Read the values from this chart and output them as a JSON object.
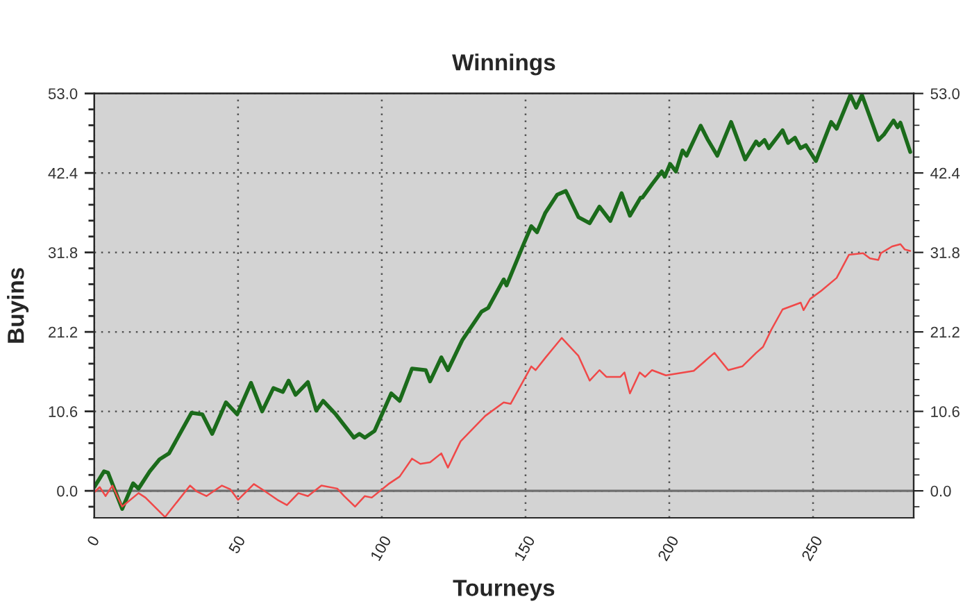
{
  "chart_data": {
    "type": "line",
    "title": "Winnings",
    "xlabel": "Tourneys",
    "ylabel": "Buyins",
    "xlim": [
      0,
      285
    ],
    "ylim": [
      -3.6,
      53.0
    ],
    "xticks": [
      0,
      50,
      100,
      150,
      200,
      250
    ],
    "yticks": [
      {
        "value": 0,
        "label": "0.0"
      },
      10.6,
      21.2,
      31.8,
      42.4,
      {
        "value": 53,
        "label": "53.0"
      }
    ],
    "y2lim": [
      -3.6,
      53.0
    ],
    "y2ticks": [
      {
        "value": 0,
        "label": "0.0"
      },
      10.6,
      21.2,
      31.8,
      42.4,
      {
        "value": 53,
        "label": "53.0"
      }
    ],
    "grid": true,
    "marker": "none",
    "line_style": "solid",
    "ref_lines": [
      {
        "axis": "y",
        "value": 0,
        "color": "#6e6e6e",
        "line_style": "solid"
      }
    ],
    "series": [
      {
        "color": "#1b6b1b",
        "x": [
          0,
          3.4,
          4.8,
          9.7,
          13.5,
          15.4,
          19.3,
          22.7,
          26,
          33.8,
          37.6,
          41,
          45.8,
          49.7,
          54.5,
          58.4,
          62.3,
          65.6,
          67.6,
          70,
          74.3,
          77.2,
          79.6,
          84,
          90.3,
          92.2,
          94.1,
          97.5,
          103.3,
          106.2,
          110.5,
          115.3,
          116.8,
          120.7,
          123,
          128,
          134.7,
          137,
          142.4,
          143.4,
          149,
          152,
          154,
          156.9,
          161,
          164,
          168.4,
          172.3,
          175.7,
          179.5,
          183.4,
          186.3,
          190,
          190.6,
          194,
          197.4,
          198.4,
          200.3,
          202.3,
          204.6,
          206,
          210.9,
          213.3,
          216.7,
          221.5,
          226.4,
          230.2,
          231.2,
          233.1,
          234.6,
          239.4,
          241.3,
          243.7,
          245.6,
          247.5,
          249,
          251,
          256.3,
          258.2,
          263,
          265,
          267,
          272.7,
          274.6,
          278,
          279.4,
          280.4,
          283.8
        ],
        "values": [
          0.5,
          2.6,
          2.4,
          -2.4,
          1.0,
          0.3,
          2.6,
          4.2,
          5.0,
          10.4,
          10.2,
          7.6,
          11.8,
          10.2,
          14.4,
          10.6,
          13.7,
          13.2,
          14.7,
          12.8,
          14.5,
          10.7,
          12.0,
          10.2,
          7.1,
          7.6,
          7.1,
          8.0,
          13.0,
          12.0,
          16.3,
          16.1,
          14.6,
          17.8,
          16.1,
          20.1,
          23.9,
          24.4,
          28.2,
          27.4,
          32.6,
          35.3,
          34.5,
          37.1,
          39.5,
          40.0,
          36.5,
          35.7,
          37.9,
          36.0,
          39.7,
          36.7,
          39.1,
          39.1,
          40.9,
          42.6,
          41.9,
          43.6,
          42.6,
          45.4,
          44.7,
          48.7,
          46.9,
          44.7,
          49.2,
          44.2,
          46.6,
          46.1,
          46.8,
          45.7,
          48.1,
          46.4,
          47.1,
          45.7,
          46.1,
          45.2,
          44.0,
          49.2,
          48.3,
          52.8,
          51.1,
          52.8,
          46.8,
          47.5,
          49.4,
          48.5,
          49.1,
          45.2
        ]
      },
      {
        "color": "#f04848",
        "x": [
          0,
          1.9,
          3.9,
          6.3,
          9.7,
          15.4,
          17.8,
          24.6,
          33.3,
          35.7,
          39,
          44.4,
          47.3,
          50,
          55.5,
          58.4,
          63.7,
          67,
          71,
          74.3,
          79,
          84.5,
          86.9,
          90.7,
          94.1,
          96.5,
          102.3,
          106.2,
          110.5,
          113.4,
          116.8,
          120.7,
          123,
          127.4,
          136,
          142.4,
          144.8,
          152,
          153.5,
          157,
          162.6,
          168.4,
          172.3,
          175.7,
          178.1,
          183,
          184.4,
          186.3,
          189.7,
          191.6,
          194,
          198.8,
          208.5,
          215.7,
          220.5,
          225.4,
          230.2,
          232.6,
          235.5,
          239.4,
          245.7,
          246.7,
          249,
          252.9,
          258.2,
          262.5,
          267.4,
          269.8,
          272.7,
          273.6,
          277.5,
          280.4,
          281.9,
          283.8
        ],
        "values": [
          -0.2,
          0.5,
          -0.7,
          0.7,
          -2.1,
          -0.3,
          -0.9,
          -3.5,
          0.7,
          -0.1,
          -0.7,
          0.7,
          0.2,
          -1.2,
          0.9,
          0.2,
          -1.2,
          -1.9,
          -0.3,
          -0.7,
          0.7,
          0.3,
          -0.7,
          -2.1,
          -0.7,
          -0.9,
          0.9,
          1.9,
          4.3,
          3.6,
          3.8,
          5.0,
          3.1,
          6.6,
          10.0,
          11.8,
          11.6,
          16.6,
          16.1,
          17.8,
          20.4,
          18.0,
          14.7,
          16.1,
          15.2,
          15.2,
          15.8,
          13.0,
          15.8,
          15.2,
          16.1,
          15.4,
          16.0,
          18.4,
          16.1,
          16.6,
          18.4,
          19.2,
          21.5,
          24.2,
          25.1,
          24.1,
          25.6,
          26.7,
          28.4,
          31.5,
          31.7,
          31.0,
          30.8,
          31.7,
          32.6,
          32.9,
          32.2,
          32.0
        ]
      }
    ]
  }
}
